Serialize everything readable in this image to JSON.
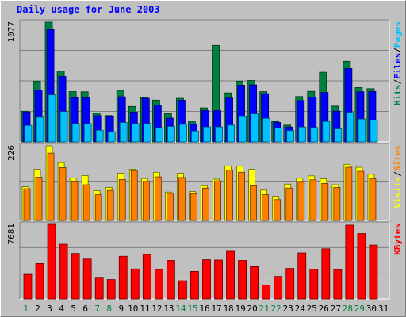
{
  "chart_data": {
    "type": "bar",
    "title": "Daily usage for June 2003",
    "categories": [
      "1",
      "2",
      "3",
      "4",
      "5",
      "6",
      "7",
      "8",
      "9",
      "10",
      "11",
      "12",
      "13",
      "14",
      "15",
      "16",
      "17",
      "18",
      "19",
      "20",
      "21",
      "22",
      "23",
      "24",
      "25",
      "26",
      "27",
      "28",
      "29",
      "30",
      "31"
    ],
    "weekend_days": [
      1,
      7,
      8,
      14,
      15,
      21,
      22,
      28,
      29
    ],
    "colors": {
      "hits": "#008040",
      "files": "#0000ff",
      "pages": "#00c0ff",
      "visits": "#ffff00",
      "sites": "#ff8000",
      "kbytes": "#ff0000",
      "weekend_label": "#008040",
      "weekday_label": "#000000",
      "title": "#0000ff"
    },
    "panels": [
      {
        "ymax_label": "1077",
        "ymax": 1077,
        "legend": [
          {
            "text": "Hits",
            "color": "#008040"
          },
          {
            "text": "/",
            "color": "#000000"
          },
          {
            "text": "Files",
            "color": "#0000ff"
          },
          {
            "text": "/",
            "color": "#000000"
          },
          {
            "text": "Pages",
            "color": "#00c0ff"
          }
        ],
        "series": [
          {
            "name": "Hits",
            "values": [
              276,
              547,
              1077,
              636,
              453,
              451,
              258,
              237,
              464,
              319,
              399,
              376,
              253,
              392,
              181,
              306,
              868,
              441,
              547,
              553,
              452,
              183,
              151,
              408,
              455,
              627,
              322,
              725,
              489,
              479,
              0
            ]
          },
          {
            "name": "Files",
            "values": [
              269,
              466,
              1011,
              589,
              397,
              396,
              236,
              226,
              406,
              268,
              392,
              329,
              214,
              375,
              158,
              282,
              282,
              395,
              510,
              513,
              434,
              175,
              134,
              372,
              402,
              445,
              277,
              660,
              452,
              454,
              0
            ]
          },
          {
            "name": "Pages",
            "values": [
              148,
              222,
              423,
              274,
              165,
              164,
              105,
              92,
              175,
              165,
              165,
              128,
              139,
              158,
              98,
              135,
              135,
              151,
              228,
              253,
              212,
              126,
              102,
              134,
              129,
              183,
              117,
              265,
              206,
              196,
              0
            ]
          }
        ]
      },
      {
        "ymax_label": "226",
        "ymax": 226,
        "legend": [
          {
            "text": "Visits",
            "color": "#ffff00"
          },
          {
            "text": "/",
            "color": "#000000"
          },
          {
            "text": "Sites",
            "color": "#ff8000"
          }
        ],
        "series": [
          {
            "name": "Visits",
            "values": [
              102,
              155,
              226,
              175,
              129,
              136,
              90,
              100,
              143,
              155,
              127,
              146,
              86,
              143,
              88,
              105,
              125,
              165,
              164,
              155,
              92,
              73,
              110,
              128,
              135,
              126,
              108,
              170,
              161,
              140,
              0
            ]
          },
          {
            "name": "Sites",
            "values": [
              96,
              131,
              204,
              160,
              117,
              108,
              78,
              91,
              124,
              151,
              118,
              132,
              82,
              130,
              81,
              98,
              120,
              152,
              146,
              105,
              78,
              63,
              98,
              116,
              123,
              112,
              100,
              161,
              149,
              126,
              0
            ]
          }
        ]
      },
      {
        "ymax_label": "7681",
        "ymax": 7681,
        "legend": [
          {
            "text": "KBytes",
            "color": "#ff0000"
          }
        ],
        "series": [
          {
            "name": "KBytes",
            "values": [
              2524,
              3643,
              7681,
              5632,
              4685,
              4105,
              2148,
              1994,
              4391,
              3082,
              4582,
              3031,
              3964,
              1874,
              2828,
              4037,
              4004,
              4906,
              3962,
              3322,
              1439,
              2313,
              3136,
              4737,
              3043,
              5163,
              3011,
              7603,
              6737,
              5549,
              0
            ]
          }
        ]
      }
    ]
  }
}
